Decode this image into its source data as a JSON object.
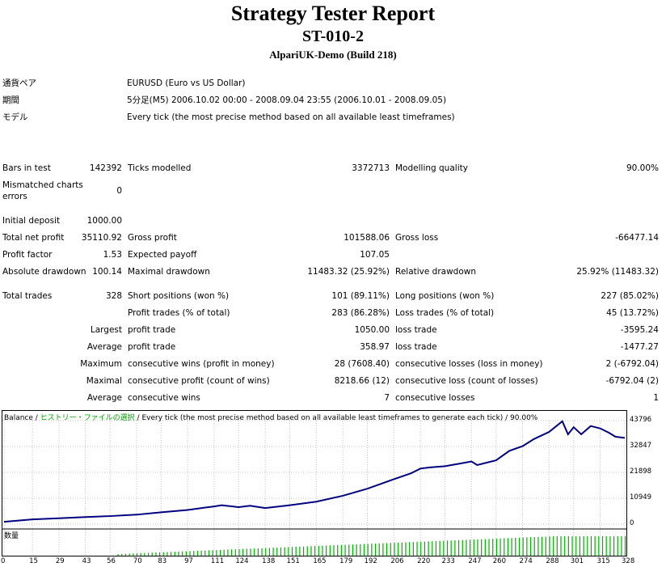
{
  "header": {
    "title": "Strategy Tester Report",
    "subtitle": "ST-010-2",
    "build": "AlpariUK-Demo (Build 218)"
  },
  "info": [
    {
      "label": "通貨ペア",
      "value": "EURUSD (Euro vs US Dollar)"
    },
    {
      "label": "期間",
      "value": "5分足(M5) 2006.10.02 00:00 - 2008.09.04 23:55 (2006.10.01 - 2008.09.05)"
    },
    {
      "label": "モデル",
      "value": "Every tick (the most precise method based on all available least timeframes)"
    }
  ],
  "stats": {
    "bars_in_test": {
      "label": "Bars in test",
      "value": "142392"
    },
    "ticks_modelled": {
      "label": "Ticks modelled",
      "value": "3372713"
    },
    "modelling_quality": {
      "label": "Modelling quality",
      "value": "90.00%"
    },
    "mismatched": {
      "label1": "Mismatched charts",
      "label2": "errors",
      "value": "0"
    },
    "initial_deposit": {
      "label": "Initial deposit",
      "value": "1000.00"
    },
    "total_net_profit": {
      "label": "Total net profit",
      "value": "35110.92"
    },
    "gross_profit": {
      "label": "Gross profit",
      "value": "101588.06"
    },
    "gross_loss": {
      "label": "Gross loss",
      "value": "-66477.14"
    },
    "profit_factor": {
      "label": "Profit factor",
      "value": "1.53"
    },
    "expected_payoff": {
      "label": "Expected payoff",
      "value": "107.05"
    },
    "absolute_drawdown": {
      "label": "Absolute drawdown",
      "value": "100.14"
    },
    "maximal_drawdown": {
      "label": "Maximal drawdown",
      "value": "11483.32 (25.92%)"
    },
    "relative_drawdown": {
      "label": "Relative drawdown",
      "value": "25.92% (11483.32)"
    },
    "total_trades": {
      "label": "Total trades",
      "value": "328"
    },
    "short_positions": {
      "label": "Short positions (won %)",
      "value": "101 (89.11%)"
    },
    "long_positions": {
      "label": "Long positions (won %)",
      "value": "227 (85.02%)"
    },
    "profit_trades": {
      "label": "Profit trades (% of total)",
      "value": "283 (86.28%)"
    },
    "loss_trades": {
      "label": "Loss trades (% of total)",
      "value": "45 (13.72%)"
    },
    "largest": {
      "prefix": "Largest",
      "label1": "profit trade",
      "value1": "1050.00",
      "label2": "loss trade",
      "value2": "-3595.24"
    },
    "average": {
      "prefix": "Average",
      "label1": "profit trade",
      "value1": "358.97",
      "label2": "loss trade",
      "value2": "-1477.27"
    },
    "maximum": {
      "prefix": "Maximum",
      "label1": "consecutive wins (profit in money)",
      "value1": "28 (7608.40)",
      "label2": "consecutive losses (loss in money)",
      "value2": "2 (-6792.04)"
    },
    "maximal": {
      "prefix": "Maximal",
      "label1": "consecutive profit (count of wins)",
      "value1": "8218.66 (12)",
      "label2": "consecutive loss (count of losses)",
      "value2": "-6792.04 (2)"
    },
    "average2": {
      "prefix": "Average",
      "label1": "consecutive wins",
      "value1": "7",
      "label2": "consecutive losses",
      "value2": "1"
    }
  },
  "chart_legend": {
    "balance": "Balance",
    "sep1": " / ",
    "history": "ヒストリー・ファイルの選択",
    "rest": " / Every tick (the most precise method based on all available least timeframes to generate each tick) / 90.00%"
  },
  "volume_label": "数量",
  "colors": {
    "balance_line": "#000080",
    "volume_bars": "#00b000",
    "grid": "#c0c0c0"
  },
  "chart_data": {
    "type": "line",
    "y_ticks": [
      "43796",
      "32847",
      "21898",
      "10949",
      "0"
    ],
    "x_ticks": [
      "0",
      "15",
      "29",
      "43",
      "56",
      "70",
      "83",
      "97",
      "111",
      "124",
      "138",
      "151",
      "165",
      "179",
      "192",
      "206",
      "220",
      "233",
      "247",
      "260",
      "274",
      "288",
      "301",
      "315",
      "328"
    ],
    "ylim": [
      0,
      43796
    ],
    "xlim": [
      0,
      328
    ],
    "series": [
      {
        "name": "Balance",
        "x": [
          0,
          15,
          29,
          43,
          56,
          70,
          83,
          97,
          111,
          115,
          124,
          130,
          138,
          151,
          165,
          179,
          192,
          206,
          215,
          220,
          225,
          233,
          240,
          247,
          250,
          255,
          260,
          267,
          274,
          280,
          288,
          295,
          298,
          301,
          305,
          310,
          315,
          320,
          323,
          328
        ],
        "y": [
          1000,
          2000,
          2500,
          3000,
          3400,
          4000,
          5000,
          6000,
          7500,
          8000,
          7200,
          7800,
          6800,
          8000,
          9500,
          12000,
          15000,
          19000,
          21500,
          23500,
          24000,
          24500,
          25500,
          26500,
          25000,
          26000,
          27000,
          31000,
          33000,
          36000,
          39000,
          43500,
          38000,
          41000,
          38000,
          41500,
          40500,
          38500,
          37000,
          36500
        ]
      }
    ]
  }
}
